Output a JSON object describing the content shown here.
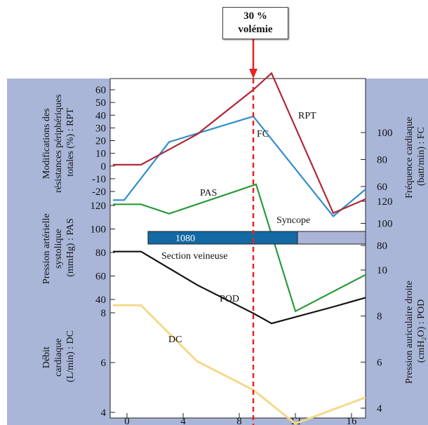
{
  "annotation": {
    "line1": "30 %",
    "line2": "volémie"
  },
  "left_axis_labels": {
    "rpt": [
      "Modifications des",
      "résistances périphériques",
      "totales (%) : RPT"
    ],
    "pas": [
      "Pression artérielle",
      "systolique",
      "(mmHg) : PAS"
    ],
    "dc": [
      "Débit",
      "cardiaque",
      "(L/min) : DC"
    ]
  },
  "right_axis_labels": {
    "fc": [
      "Fréquence cardiaque",
      "(batt/min) : FC"
    ],
    "pod": [
      "Pression auriculaire droite",
      "(cmH₂O) : POD"
    ]
  },
  "colors": {
    "panel_bg": "#a9b6d8",
    "rpt": "#b0283a",
    "fc": "#2f8fc8",
    "pas": "#2a9a3c",
    "pod": "#111111",
    "dc": "#f5d98a",
    "marker": "#e8231f",
    "bar_dark": "#1269a3",
    "bar_light": "#aab4d8"
  },
  "chart_data": {
    "type": "line",
    "xlabel": "",
    "x_ticks": [
      "0",
      "4",
      "8",
      "12",
      "16"
    ],
    "x_range": [
      -1.2,
      17
    ],
    "marker_x": 9,
    "series": [
      {
        "name": "RPT",
        "axis_name": "rpt",
        "x": [
          -1,
          1,
          5,
          9,
          10.3,
          14.7,
          17
        ],
        "y": [
          1,
          1,
          25,
          60,
          73,
          -37,
          -26
        ]
      },
      {
        "name": "FC",
        "axis_name": "fc",
        "x": [
          -1,
          -0.2,
          3,
          9,
          14.7,
          17
        ],
        "y": [
          50,
          50,
          93,
          112,
          38,
          58
        ]
      },
      {
        "name": "PAS",
        "axis_name": "pas",
        "x": [
          -1,
          1,
          3,
          9.2,
          12,
          17
        ],
        "y": [
          121,
          121,
          113,
          138,
          30,
          61
        ]
      },
      {
        "name": "POD",
        "axis_name": "pod",
        "x": [
          -1,
          1,
          5,
          9,
          10.3,
          14.7,
          17
        ],
        "y": [
          10.8,
          10.8,
          9.35,
          8.12,
          7.68,
          8.4,
          8.8
        ]
      },
      {
        "name": "DC",
        "axis_name": "dc",
        "x": [
          -1,
          1,
          5,
          9,
          12,
          17
        ],
        "y": [
          8.3,
          8.3,
          6.05,
          4.9,
          3.55,
          4.6
        ]
      }
    ],
    "axes": {
      "rpt": {
        "ticks": [
          "60",
          "50",
          "40",
          "30",
          "20",
          "10",
          "0",
          "-10",
          "-20"
        ]
      },
      "pas_left": {
        "ticks": [
          "120",
          "100",
          "80",
          "60",
          "40"
        ]
      },
      "dc": {
        "ticks": [
          "8",
          "6",
          "4"
        ]
      },
      "fc": {
        "ticks": [
          "100",
          "80",
          "60"
        ]
      },
      "pas_right": {
        "ticks": [
          "120",
          "100",
          "80"
        ]
      },
      "pod": {
        "ticks": [
          "10",
          "8",
          "6",
          "4"
        ]
      }
    },
    "labels": {
      "rpt": "RPT",
      "fc": "FC",
      "pas": "PAS",
      "pod": "POD",
      "dc": "DC"
    },
    "bar": {
      "value": "1080",
      "label": "Section veineuse",
      "syncope": "Syncope"
    }
  }
}
